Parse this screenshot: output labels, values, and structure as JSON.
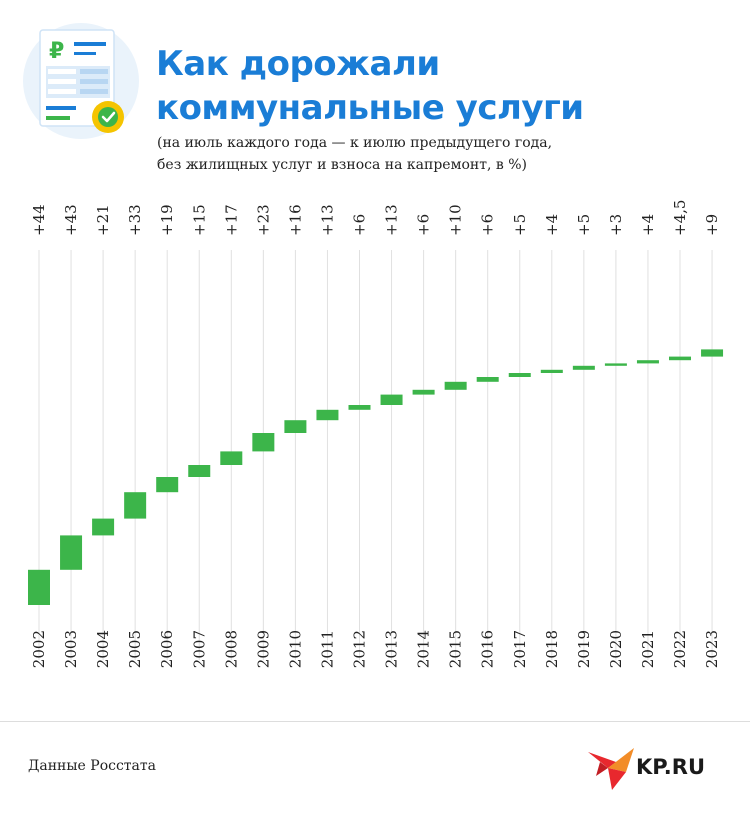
{
  "title_line1": "Как дорожали",
  "title_line2": "коммунальные услуги",
  "subtitle_line1": "(на июль каждого года — к июлю предыдущего года,",
  "subtitle_line2": "без жилищных услуг и взноса на капремонт, в %)",
  "source": "Данные Росстата",
  "logo_text": "KP.RU",
  "icon_symbol": "₽",
  "colors": {
    "bar": "#3cb54a",
    "title": "#1a7dd6",
    "grid": "#e0e0e0",
    "icon_bg": "#eaf3fb",
    "icon_check": "#f5c400",
    "logo_red": "#e8282e",
    "logo_orange": "#f28c28"
  },
  "chart_data": {
    "type": "waterfall",
    "title": "",
    "xlabel": "",
    "ylabel": "",
    "categories": [
      "2002",
      "2003",
      "2004",
      "2005",
      "2006",
      "2007",
      "2008",
      "2009",
      "2010",
      "2011",
      "2012",
      "2013",
      "2014",
      "2015",
      "2016",
      "2017",
      "2018",
      "2019",
      "2020",
      "2021",
      "2022",
      "2023"
    ],
    "labels": [
      "+44",
      "+43",
      "+21",
      "+33",
      "+19",
      "+15",
      "+17",
      "+23",
      "+16",
      "+13",
      "+6",
      "+13",
      "+6",
      "+10",
      "+6",
      "+5",
      "+4",
      "+5",
      "+3",
      "+4",
      "+4,5",
      "+9"
    ],
    "values": [
      44,
      43,
      21,
      33,
      19,
      15,
      17,
      23,
      16,
      13,
      6,
      13,
      6,
      10,
      6,
      5,
      4,
      5,
      3,
      4,
      4.5,
      9
    ],
    "grid": "vertical"
  }
}
